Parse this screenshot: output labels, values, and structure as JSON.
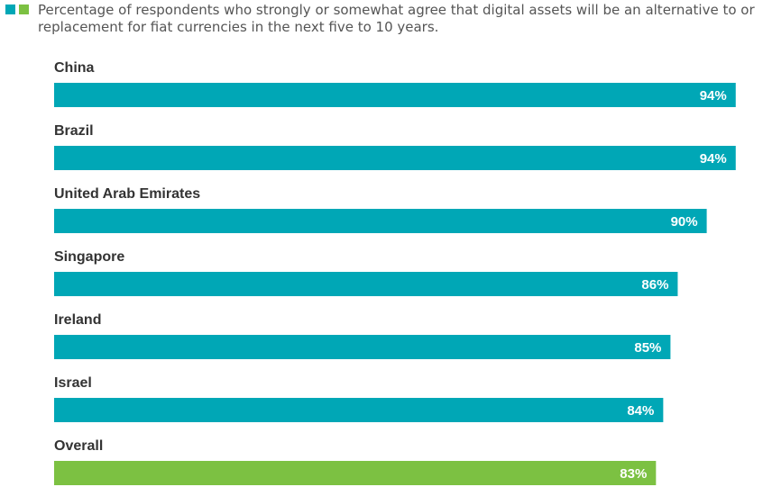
{
  "colors": {
    "primary": "#00a7b6",
    "overall": "#7cc142"
  },
  "legend": {
    "swatches": [
      "#00a7b6",
      "#7cc142"
    ]
  },
  "chart_data": {
    "type": "bar",
    "orientation": "horizontal",
    "title": "Percentage of respondents who strongly or somewhat agree that digital assets will be an alternative to or replacement for fiat currencies in the next five to 10 years.",
    "categories": [
      "China",
      "Brazil",
      "United Arab Emirates",
      "Singapore",
      "Ireland",
      "Israel",
      "Overall"
    ],
    "values": [
      94,
      94,
      90,
      86,
      85,
      84,
      83
    ],
    "value_labels": [
      "94%",
      "94%",
      "90%",
      "86%",
      "85%",
      "84%",
      "83%"
    ],
    "highlight_category": "Overall",
    "xlim": [
      0,
      100
    ],
    "xlabel": "",
    "ylabel": "",
    "grid": false,
    "axis_visible": false
  }
}
